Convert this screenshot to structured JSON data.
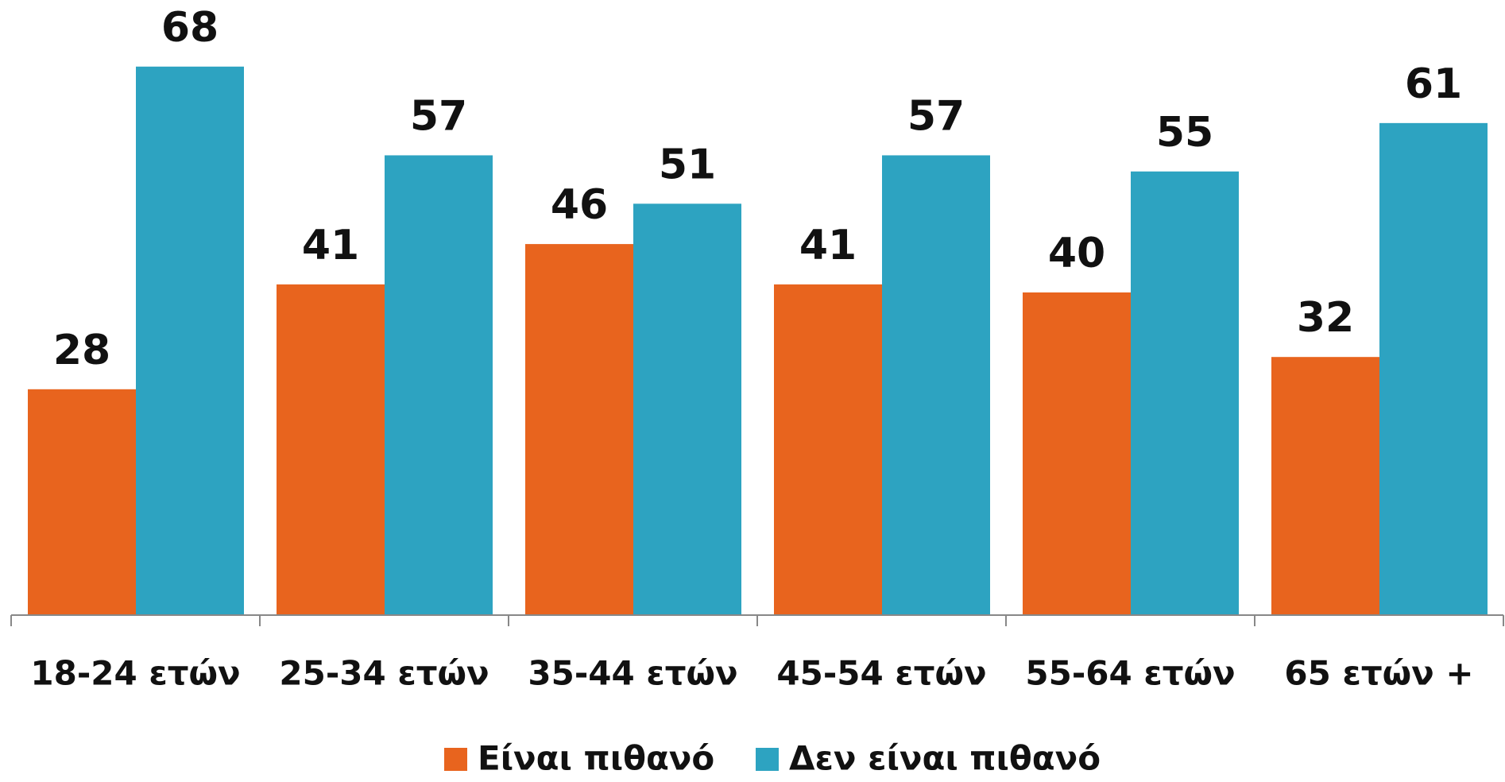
{
  "chart_data": {
    "type": "bar",
    "categories": [
      "18-24 ετών",
      "25-34 ετών",
      "35-44 ετών",
      "45-54 ετών",
      "55-64 ετών",
      "65 ετών +"
    ],
    "series": [
      {
        "name": "Είναι πιθανό",
        "color": "#E8641E",
        "values": [
          28,
          41,
          46,
          41,
          40,
          32
        ]
      },
      {
        "name": "Δεν είναι πιθανό",
        "color": "#2DA3C1",
        "values": [
          68,
          57,
          51,
          57,
          55,
          61
        ]
      }
    ],
    "legend": "bottom"
  }
}
